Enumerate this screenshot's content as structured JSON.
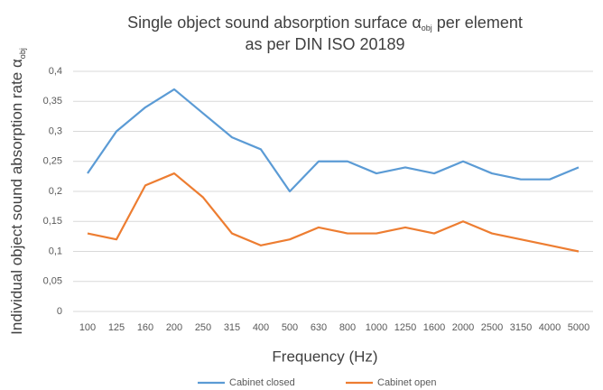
{
  "chart_data": {
    "type": "line",
    "title": [
      "Single object sound absorption surface α",
      "obj",
      " per element",
      "as per DIN ISO 20189"
    ],
    "y_label": [
      "Individual object sound absorption rate α",
      "obj"
    ],
    "x_label": "Frequency (Hz)",
    "categories": [
      "100",
      "125",
      "160",
      "200",
      "250",
      "315",
      "400",
      "500",
      "630",
      "800",
      "1000",
      "1250",
      "1600",
      "2000",
      "2500",
      "3150",
      "4000",
      "5000"
    ],
    "series": [
      {
        "name": "Cabinet closed",
        "color": "#5b9bd5",
        "values": [
          0.23,
          0.3,
          0.34,
          0.37,
          0.33,
          0.29,
          0.27,
          0.2,
          0.25,
          0.25,
          0.23,
          0.24,
          0.23,
          0.25,
          0.23,
          0.22,
          0.22,
          0.24
        ]
      },
      {
        "name": "Cabinet open",
        "color": "#ed7d31",
        "values": [
          0.13,
          0.12,
          0.21,
          0.23,
          0.19,
          0.13,
          0.11,
          0.12,
          0.14,
          0.13,
          0.13,
          0.14,
          0.13,
          0.15,
          0.13,
          0.12,
          0.11,
          0.1
        ]
      }
    ],
    "ylim": [
      0,
      0.4
    ],
    "yticks": [
      0,
      {
        "value": 0.05,
        "label": "0,05"
      },
      {
        "value": 0.1,
        "label": "0,1"
      },
      {
        "value": 0.15,
        "label": "0,15"
      },
      {
        "value": 0.2,
        "label": "0,2"
      },
      {
        "value": 0.25,
        "label": "0,25"
      },
      {
        "value": 0.3,
        "label": "0,3"
      },
      {
        "value": 0.35,
        "label": "0,35"
      },
      {
        "value": 0.4,
        "label": "0,4"
      }
    ],
    "grid": true,
    "legend": "bottom"
  }
}
